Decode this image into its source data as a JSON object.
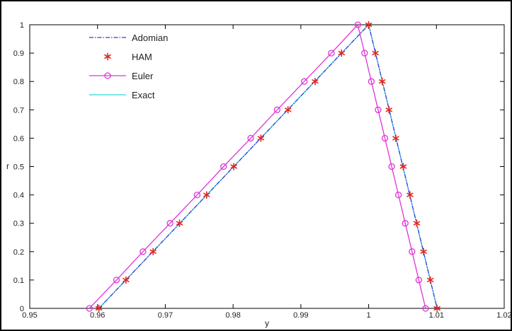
{
  "chart_data": {
    "type": "line",
    "title": "",
    "xlabel": "y",
    "ylabel": "r",
    "xlim": [
      0.95,
      1.02
    ],
    "ylim": [
      0,
      1
    ],
    "grid": false,
    "legend_position": "top-left",
    "x_ticks": [
      "0.95",
      "0.96",
      "0.97",
      "0.98",
      "0.99",
      "1",
      "1.01",
      "1.02"
    ],
    "y_ticks": [
      "0",
      "0.1",
      "0.2",
      "0.3",
      "0.4",
      "0.5",
      "0.6",
      "0.7",
      "0.8",
      "0.9",
      "1"
    ],
    "series": [
      {
        "name": "Adomian",
        "color": "#3b3bcf",
        "style": "dash-dot",
        "marker": "none",
        "points": [
          [
            0.9602,
            0
          ],
          [
            1.0,
            1
          ],
          [
            1.0101,
            0
          ]
        ]
      },
      {
        "name": "HAM",
        "color": "#e3261c",
        "style": "none",
        "marker": "asterisk",
        "points": [
          [
            0.9602,
            0
          ],
          [
            0.9642,
            0.1
          ],
          [
            0.9682,
            0.2
          ],
          [
            0.9721,
            0.3
          ],
          [
            0.9761,
            0.4
          ],
          [
            0.9801,
            0.5
          ],
          [
            0.9841,
            0.6
          ],
          [
            0.9881,
            0.7
          ],
          [
            0.9921,
            0.8
          ],
          [
            0.996,
            0.9
          ],
          [
            1.0,
            1
          ],
          [
            1.001,
            0.9
          ],
          [
            1.002,
            0.8
          ],
          [
            1.003,
            0.7
          ],
          [
            1.004,
            0.6
          ],
          [
            1.0051,
            0.5
          ],
          [
            1.0061,
            0.4
          ],
          [
            1.0071,
            0.3
          ],
          [
            1.0081,
            0.2
          ],
          [
            1.0091,
            0.1
          ],
          [
            1.0101,
            0
          ]
        ]
      },
      {
        "name": "Euler",
        "color": "#e033d6",
        "style": "solid",
        "marker": "circle",
        "points": [
          [
            0.9588,
            0
          ],
          [
            0.9628,
            0.1
          ],
          [
            0.9667,
            0.2
          ],
          [
            0.9707,
            0.3
          ],
          [
            0.9747,
            0.4
          ],
          [
            0.9786,
            0.5
          ],
          [
            0.9826,
            0.6
          ],
          [
            0.9865,
            0.7
          ],
          [
            0.9905,
            0.8
          ],
          [
            0.9945,
            0.9
          ],
          [
            0.9984,
            1
          ],
          [
            0.9994,
            0.9
          ],
          [
            1.0004,
            0.8
          ],
          [
            1.0014,
            0.7
          ],
          [
            1.0024,
            0.6
          ],
          [
            1.0034,
            0.5
          ],
          [
            1.0044,
            0.4
          ],
          [
            1.0054,
            0.3
          ],
          [
            1.0064,
            0.2
          ],
          [
            1.0074,
            0.1
          ],
          [
            1.0084,
            0
          ]
        ]
      },
      {
        "name": "Exact",
        "color": "#28d8e0",
        "style": "solid",
        "marker": "none",
        "points": [
          [
            0.9602,
            0
          ],
          [
            1.0,
            1
          ],
          [
            1.0101,
            0
          ]
        ]
      }
    ]
  }
}
